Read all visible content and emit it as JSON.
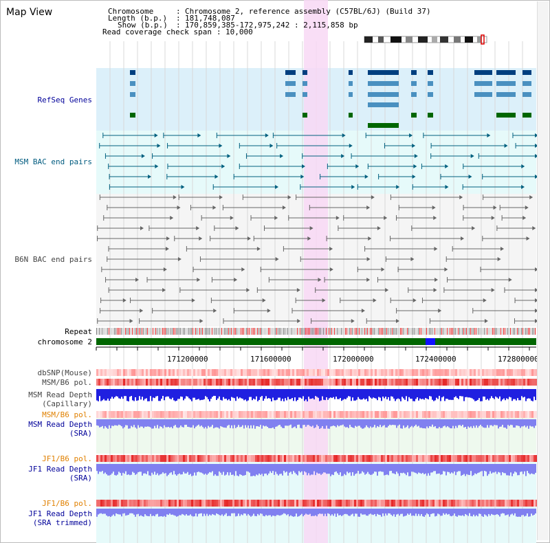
{
  "app": {
    "title": "Map View"
  },
  "info": {
    "chromosome_label": "Chromosome",
    "chromosome_value": "Chromosome 2, reference assembly (C57BL/6J) (Build 37)",
    "length_label": "Length (b.p.)",
    "length_value": "181,748,087",
    "show_label": "Show (b.p.)",
    "show_value": "170,859,385-172,975,242 : 2,115,858 bp",
    "coverage_label": "Read coverage check span",
    "coverage_value": "10,000"
  },
  "tracks": {
    "refseq": "RefSeq Genes",
    "msm_bac": "MSM BAC end pairs",
    "b6n_bac": "B6N BAC end pairs",
    "repeat": "Repeat",
    "chromosome": "chromosome 2",
    "dbsnp": "dbSNP(Mouse)",
    "msm_b6_pol_1": "MSM/B6 pol.",
    "msm_read_depth_cap_1": "MSM Read Depth",
    "msm_read_depth_cap_2": "(Capillary)",
    "msm_b6_pol_2": "MSM/B6 pol.",
    "msm_read_depth_sra_1": "MSM Read Depth",
    "msm_read_depth_sra_2": "(SRA)",
    "jf1_b6_pol_1": "JF1/B6 pol.",
    "jf1_read_depth_sra_1": "JF1 Read Depth",
    "jf1_read_depth_sra_2": "(SRA)",
    "jf1_b6_pol_2": "JF1/B6 pol.",
    "jf1_read_depth_trim_1": "JF1 Read Depth",
    "jf1_read_depth_trim_2": "(SRA trimmed)"
  },
  "axis": {
    "ticks": [
      "171200000",
      "171600000",
      "172000000",
      "172400000",
      "172800000"
    ]
  },
  "colors": {
    "refseq_bg": "#dcf0fa",
    "bac_bg": "#e6fafa",
    "b6n_bg": "#f5f5f5",
    "highlight": "#f8d8f4",
    "chrom_green": "#006600",
    "depth_blue": "#2020e0",
    "sra_blue": "#8080f0",
    "pol_red": "#ee3333"
  }
}
